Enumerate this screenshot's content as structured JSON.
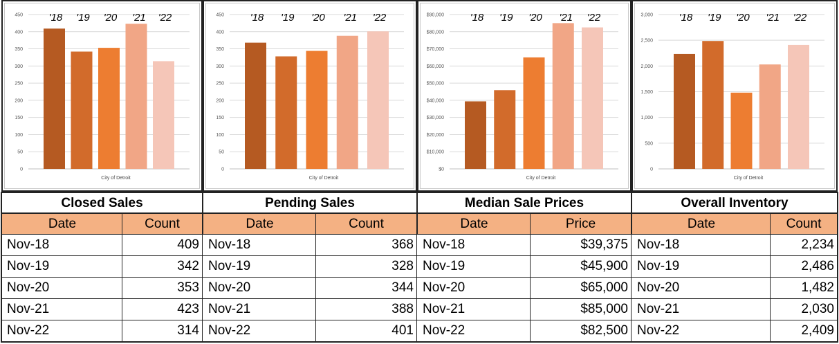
{
  "bar_colors": [
    "#b55a22",
    "#d26b2b",
    "#ed7d31",
    "#f1a686",
    "#f5c6b8"
  ],
  "header_color": "#f4b183",
  "panels": [
    {
      "title": "Closed Sales",
      "col_date": "Date",
      "col_value": "Count",
      "rows": [
        {
          "date": "Nov-18",
          "value": "409"
        },
        {
          "date": "Nov-19",
          "value": "342"
        },
        {
          "date": "Nov-20",
          "value": "353"
        },
        {
          "date": "Nov-21",
          "value": "423"
        },
        {
          "date": "Nov-22",
          "value": "314"
        }
      ]
    },
    {
      "title": "Pending Sales",
      "col_date": "Date",
      "col_value": "Count",
      "rows": [
        {
          "date": "Nov-18",
          "value": "368"
        },
        {
          "date": "Nov-19",
          "value": "328"
        },
        {
          "date": "Nov-20",
          "value": "344"
        },
        {
          "date": "Nov-21",
          "value": "388"
        },
        {
          "date": "Nov-22",
          "value": "401"
        }
      ]
    },
    {
      "title": "Median Sale Prices",
      "col_date": "Date",
      "col_value": "Price",
      "rows": [
        {
          "date": "Nov-18",
          "value": "$39,375"
        },
        {
          "date": "Nov-19",
          "value": "$45,900"
        },
        {
          "date": "Nov-20",
          "value": "$65,000"
        },
        {
          "date": "Nov-21",
          "value": "$85,000"
        },
        {
          "date": "Nov-22",
          "value": "$82,500"
        }
      ]
    },
    {
      "title": "Overall Inventory",
      "col_date": "Date",
      "col_value": "Count",
      "rows": [
        {
          "date": "Nov-18",
          "value": "2,234"
        },
        {
          "date": "Nov-19",
          "value": "2,486"
        },
        {
          "date": "Nov-20",
          "value": "1,482"
        },
        {
          "date": "Nov-21",
          "value": "2,030"
        },
        {
          "date": "Nov-22",
          "value": "2,409"
        }
      ]
    }
  ],
  "chart_data": [
    {
      "type": "bar",
      "categories": [
        "'18",
        "'19",
        "'20",
        "'21",
        "'22"
      ],
      "values": [
        409,
        342,
        353,
        423,
        314
      ],
      "xlabel": "City of Detroit",
      "ylim": [
        0,
        450
      ],
      "yticks": [
        "0",
        "50",
        "100",
        "150",
        "200",
        "250",
        "300",
        "350",
        "400",
        "450"
      ],
      "ytick_values": [
        0,
        50,
        100,
        150,
        200,
        250,
        300,
        350,
        400,
        450
      ],
      "grid": true
    },
    {
      "type": "bar",
      "categories": [
        "'18",
        "'19",
        "'20",
        "'21",
        "'22"
      ],
      "values": [
        368,
        328,
        344,
        388,
        401
      ],
      "xlabel": "City of Detroit",
      "ylim": [
        0,
        450
      ],
      "yticks": [
        "0",
        "50",
        "100",
        "150",
        "200",
        "250",
        "300",
        "350",
        "400",
        "450"
      ],
      "ytick_values": [
        0,
        50,
        100,
        150,
        200,
        250,
        300,
        350,
        400,
        450
      ],
      "grid": true
    },
    {
      "type": "bar",
      "categories": [
        "'18",
        "'19",
        "'20",
        "'21",
        "'22"
      ],
      "values": [
        39375,
        45900,
        65000,
        85000,
        82500
      ],
      "xlabel": "City of Detroit",
      "ylim": [
        0,
        90000
      ],
      "yticks": [
        "$0",
        "$10,000",
        "$20,000",
        "$30,000",
        "$40,000",
        "$50,000",
        "$60,000",
        "$70,000",
        "$80,000",
        "$90,000"
      ],
      "ytick_values": [
        0,
        10000,
        20000,
        30000,
        40000,
        50000,
        60000,
        70000,
        80000,
        90000
      ],
      "grid": true
    },
    {
      "type": "bar",
      "categories": [
        "'18",
        "'19",
        "'20",
        "'21",
        "'22"
      ],
      "values": [
        2234,
        2486,
        1482,
        2030,
        2409
      ],
      "xlabel": "City of Detroit",
      "ylim": [
        0,
        3000
      ],
      "yticks": [
        "0",
        "500",
        "1,000",
        "1,500",
        "2,000",
        "2,500",
        "3,000"
      ],
      "ytick_values": [
        0,
        500,
        1000,
        1500,
        2000,
        2500,
        3000
      ],
      "grid": true
    }
  ]
}
